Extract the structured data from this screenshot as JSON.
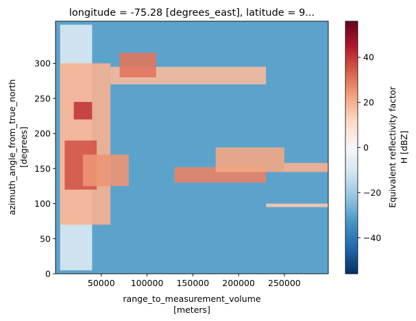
{
  "chart_data": {
    "type": "heatmap",
    "title": "longitude = -75.28 [degrees_east], latitude = 9...",
    "xlabel": "range_to_measurement_volume",
    "xlabel_units": "[meters]",
    "ylabel": "azimuth_angle_from_true_north",
    "ylabel_units": "[degrees]",
    "xlim": [
      0,
      298000
    ],
    "ylim": [
      0,
      360
    ],
    "x_ticks": [
      50000,
      100000,
      150000,
      200000,
      250000
    ],
    "y_ticks": [
      0,
      50,
      100,
      150,
      200,
      250,
      300
    ],
    "background_value": -30,
    "colorbar": {
      "label_line1": "Equivalent reflectivity factor",
      "label_line2": "H [dBZ]",
      "range": [
        -56,
        56
      ],
      "ticks": [
        -40,
        -20,
        0,
        20,
        40
      ],
      "colormap": "RdBu_r",
      "stops": [
        "#053061",
        "#2166ac",
        "#4393c3",
        "#92c5de",
        "#d1e5f0",
        "#f7f7f7",
        "#fddbc7",
        "#f4a582",
        "#d6604d",
        "#b2182b",
        "#67001f"
      ]
    },
    "echo_regions": [
      {
        "x": [
          5000,
          40000
        ],
        "az": [
          5,
          355
        ],
        "value": -8
      },
      {
        "x": [
          5000,
          60000
        ],
        "az": [
          70,
          300
        ],
        "value": 20
      },
      {
        "x": [
          10000,
          45000
        ],
        "az": [
          120,
          190
        ],
        "value": 35
      },
      {
        "x": [
          30000,
          80000
        ],
        "az": [
          125,
          170
        ],
        "value": 25
      },
      {
        "x": [
          20000,
          40000
        ],
        "az": [
          220,
          245
        ],
        "value": 40
      },
      {
        "x": [
          60000,
          230000
        ],
        "az": [
          270,
          295
        ],
        "value": 18
      },
      {
        "x": [
          70000,
          110000
        ],
        "az": [
          280,
          315
        ],
        "value": 30
      },
      {
        "x": [
          130000,
          230000
        ],
        "az": [
          130,
          152
        ],
        "value": 28
      },
      {
        "x": [
          175000,
          250000
        ],
        "az": [
          145,
          180
        ],
        "value": 22
      },
      {
        "x": [
          250000,
          298000
        ],
        "az": [
          145,
          158
        ],
        "value": 20
      },
      {
        "x": [
          230000,
          298000
        ],
        "az": [
          95,
          100
        ],
        "value": 15
      }
    ]
  }
}
